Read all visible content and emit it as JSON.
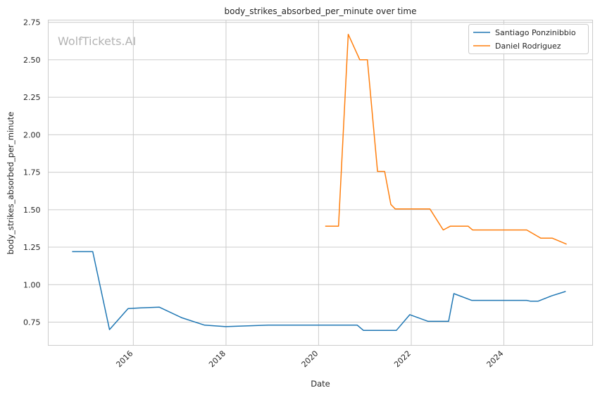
{
  "watermark": "WolfTickets.AI",
  "chart_data": {
    "type": "line",
    "title": "body_strikes_absorbed_per_minute over time",
    "xlabel": "Date",
    "ylabel": "body_strikes_absorbed_per_minute",
    "xlim": [
      "2014-03-01",
      "2025-12-01"
    ],
    "ylim": [
      0.595,
      2.765
    ],
    "x_ticks": [
      "2016",
      "2018",
      "2020",
      "2022",
      "2024"
    ],
    "y_ticks": [
      "0.75",
      "1.00",
      "1.25",
      "1.50",
      "1.75",
      "2.00",
      "2.25",
      "2.50",
      "2.75"
    ],
    "grid": true,
    "legend_position": "top-right",
    "series": [
      {
        "name": "Santiago Ponzinibbio",
        "color": "#1f77b4",
        "points": [
          [
            "2014-09-05",
            1.22
          ],
          [
            "2015-02-15",
            1.22
          ],
          [
            "2015-06-27",
            0.7
          ],
          [
            "2015-11-21",
            0.84
          ],
          [
            "2016-03-01",
            0.845
          ],
          [
            "2016-07-23",
            0.85
          ],
          [
            "2017-01-15",
            0.78
          ],
          [
            "2017-07-16",
            0.73
          ],
          [
            "2017-12-30",
            0.72
          ],
          [
            "2018-12-01",
            0.73
          ],
          [
            "2020-11-01",
            0.73
          ],
          [
            "2020-12-19",
            0.695
          ],
          [
            "2021-09-06",
            0.695
          ],
          [
            "2021-12-20",
            0.8
          ],
          [
            "2022-05-14",
            0.755
          ],
          [
            "2022-10-22",
            0.755
          ],
          [
            "2022-12-03",
            0.94
          ],
          [
            "2023-04-22",
            0.895
          ],
          [
            "2024-06-29",
            0.895
          ],
          [
            "2024-07-27",
            0.89
          ],
          [
            "2024-09-28",
            0.89
          ],
          [
            "2025-01-11",
            0.925
          ],
          [
            "2025-05-03",
            0.955
          ]
        ]
      },
      {
        "name": "Daniel Rodriguez",
        "color": "#ff7f0e",
        "points": [
          [
            "2020-02-22",
            1.39
          ],
          [
            "2020-06-06",
            1.39
          ],
          [
            "2020-08-22",
            2.67
          ],
          [
            "2020-11-21",
            2.5
          ],
          [
            "2021-01-20",
            2.5
          ],
          [
            "2021-04-10",
            1.755
          ],
          [
            "2021-06-05",
            1.755
          ],
          [
            "2021-07-24",
            1.535
          ],
          [
            "2021-08-28",
            1.505
          ],
          [
            "2022-05-28",
            1.505
          ],
          [
            "2022-09-10",
            1.365
          ],
          [
            "2022-11-05",
            1.39
          ],
          [
            "2023-03-25",
            1.39
          ],
          [
            "2023-04-29",
            1.365
          ],
          [
            "2024-06-29",
            1.365
          ],
          [
            "2024-10-19",
            1.31
          ],
          [
            "2025-01-18",
            1.31
          ],
          [
            "2025-05-10",
            1.27
          ]
        ]
      }
    ]
  }
}
